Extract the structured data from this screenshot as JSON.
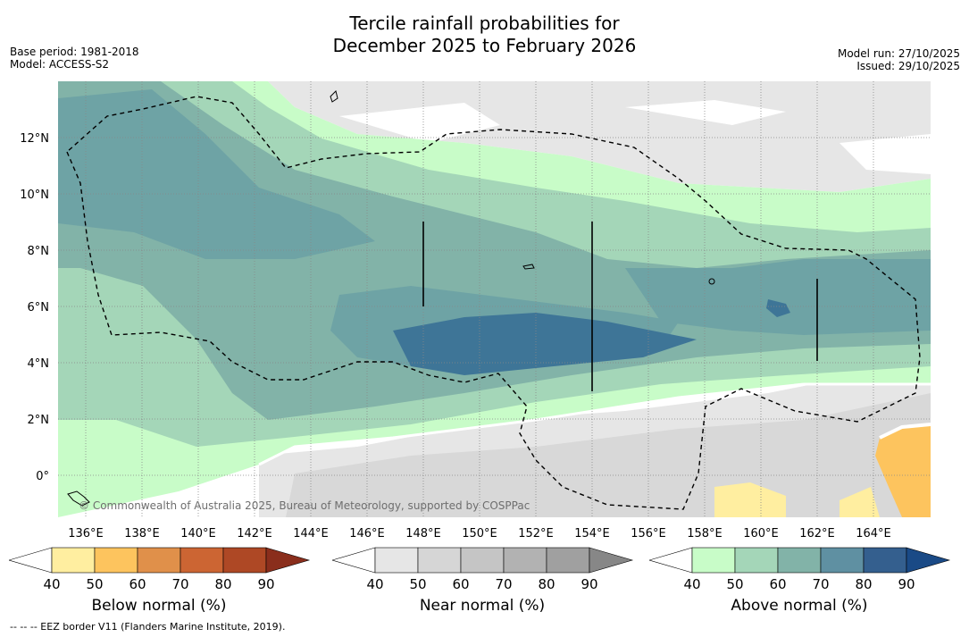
{
  "title_line1": "Tercile rainfall probabilities for",
  "title_line2": "December 2025 to February 2026",
  "base_period": "Base period: 1981-2018",
  "model": "Model: ACCESS-S2",
  "model_run": "Model run: 27/10/2025",
  "issued": "Issued: 29/10/2025",
  "credit": "© Commonwealth of Australia 2025, Bureau of Meteorology, supported by COSPPac",
  "footnote": "--  --  -- EEZ border V11 (Flanders Marine Institute, 2019).",
  "x_ticks": [
    "136°E",
    "138°E",
    "140°E",
    "142°E",
    "144°E",
    "146°E",
    "148°E",
    "150°E",
    "152°E",
    "154°E",
    "156°E",
    "158°E",
    "160°E",
    "162°E",
    "164°E"
  ],
  "y_ticks": [
    "0°",
    "2°N",
    "4°N",
    "6°N",
    "8°N",
    "10°N",
    "12°N"
  ],
  "colorbars": [
    {
      "title": "Below normal (%)",
      "ticks": [
        "40",
        "50",
        "60",
        "70",
        "80",
        "90"
      ],
      "colors": [
        "#ffffff",
        "#ffeea0",
        "#fdc45e",
        "#e0904a",
        "#cc6533",
        "#ae4825",
        "#8a2e1c"
      ]
    },
    {
      "title": "Near normal (%)",
      "ticks": [
        "40",
        "50",
        "60",
        "70",
        "80",
        "90"
      ],
      "colors": [
        "#ffffff",
        "#e6e6e6",
        "#d6d6d6",
        "#c5c5c5",
        "#b2b2b2",
        "#a0a0a0",
        "#878787"
      ]
    },
    {
      "title": "Above normal (%)",
      "ticks": [
        "40",
        "50",
        "60",
        "70",
        "80",
        "90"
      ],
      "colors": [
        "#ffffff",
        "#c8fcc8",
        "#a4d6b8",
        "#82b3a8",
        "#5f90a2",
        "#345f8e",
        "#1a4a86"
      ]
    }
  ]
}
